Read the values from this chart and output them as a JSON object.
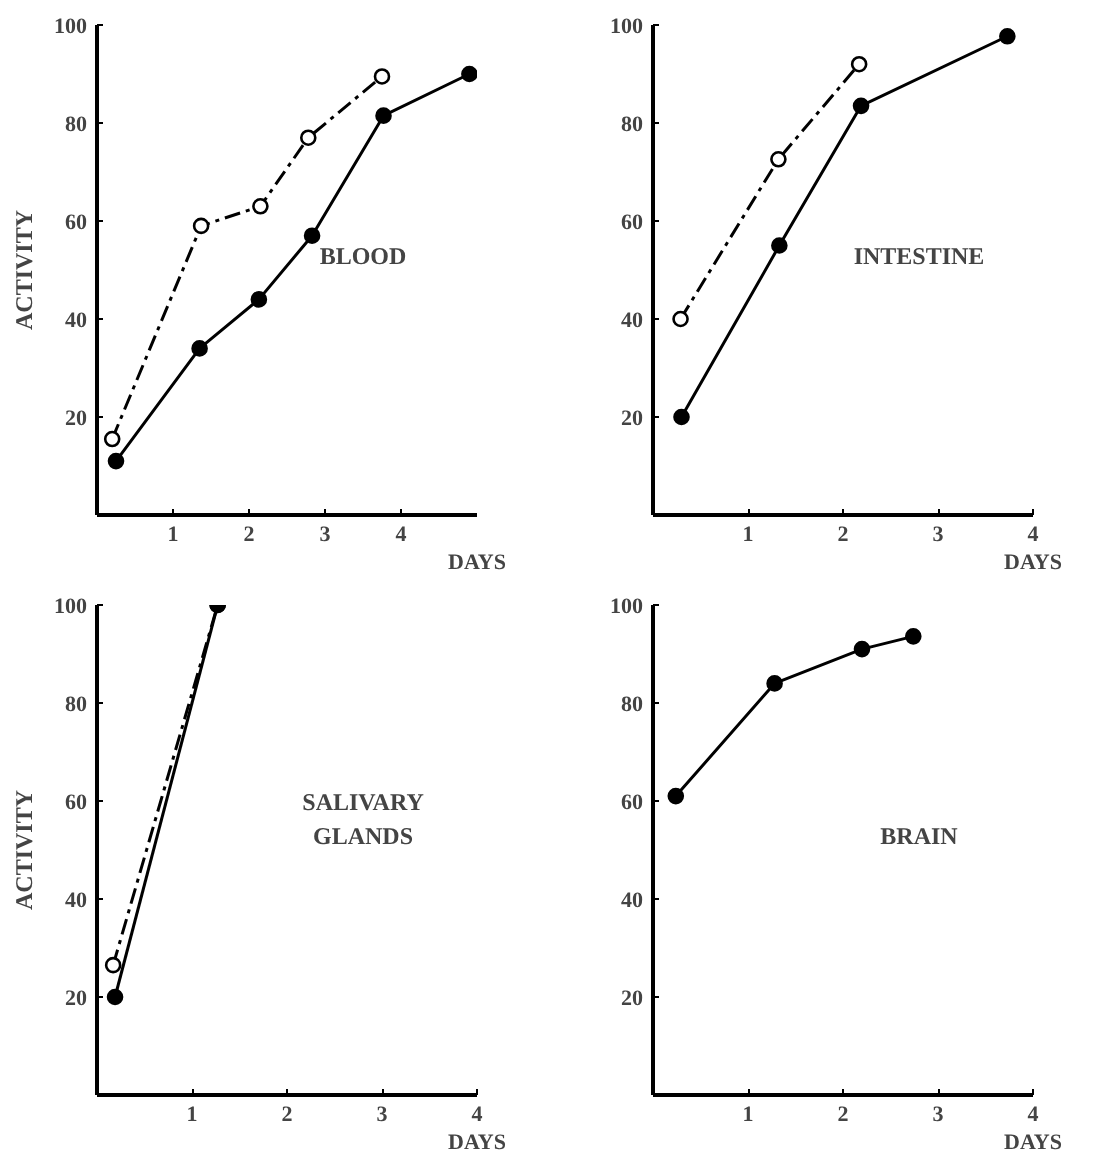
{
  "chart_data": [
    {
      "type": "line",
      "title": "BLOOD",
      "xlabel": "DAYS",
      "ylabel": "ACTIVITY",
      "xlim": [
        0,
        5
      ],
      "xticks": [
        1,
        2,
        3,
        4
      ],
      "ylim": [
        0,
        100
      ],
      "yticks": [
        20,
        40,
        60,
        80,
        100
      ],
      "grid": false,
      "marker": "circle",
      "series": [
        {
          "color": "#000000",
          "line_style": "dashed",
          "x": [
            0.2,
            1.37,
            2.15,
            2.78,
            3.75
          ],
          "values": [
            15.5,
            59,
            63,
            77,
            89.5
          ]
        },
        {
          "color": "#000000",
          "line_style": "solid",
          "x": [
            0.25,
            1.35,
            2.13,
            2.83,
            3.77,
            4.9
          ],
          "values": [
            11,
            34,
            44,
            57,
            81.5,
            90
          ]
        }
      ]
    },
    {
      "type": "line",
      "title": "INTESTINE",
      "xlabel": "DAYS",
      "xlim": [
        0,
        4
      ],
      "xticks": [
        1,
        2,
        3,
        4
      ],
      "ylim": [
        0,
        100
      ],
      "yticks": [
        20,
        40,
        60,
        80,
        100
      ],
      "grid": false,
      "marker": "circle",
      "series": [
        {
          "color": "#000000",
          "line_style": "dashed",
          "x": [
            0.29,
            1.32,
            2.17
          ],
          "values": [
            40,
            72.6,
            92
          ]
        },
        {
          "color": "#000000",
          "line_style": "solid",
          "x": [
            0.3,
            1.33,
            2.19,
            3.73
          ],
          "values": [
            20,
            55,
            83.5,
            97.7
          ]
        }
      ]
    },
    {
      "type": "line",
      "title": "SALIVARY\nGLANDS",
      "xlabel": "DAYS",
      "ylabel": "ACTIVITY",
      "xlim": [
        0,
        4
      ],
      "xticks": [
        1,
        2,
        3,
        4
      ],
      "ylim": [
        0,
        100
      ],
      "yticks": [
        20,
        40,
        60,
        80,
        100
      ],
      "grid": false,
      "marker": "circle",
      "series": [
        {
          "color": "#000000",
          "line_style": "dashed",
          "x": [
            0.17,
            1.27
          ],
          "values": [
            26.5,
            100
          ]
        },
        {
          "color": "#000000",
          "line_style": "solid",
          "x": [
            0.19,
            1.27
          ],
          "values": [
            20,
            100
          ]
        }
      ]
    },
    {
      "type": "line",
      "title": "BRAIN",
      "xlabel": "DAYS",
      "xlim": [
        0,
        4
      ],
      "xticks": [
        1,
        2,
        3,
        4
      ],
      "ylim": [
        0,
        100
      ],
      "yticks": [
        20,
        40,
        60,
        80,
        100
      ],
      "grid": false,
      "marker": "circle",
      "series": [
        {
          "color": "#000000",
          "line_style": "solid",
          "x": [
            0.24,
            1.28,
            2.2,
            2.74
          ],
          "values": [
            61,
            84,
            91,
            93.6
          ]
        }
      ]
    }
  ]
}
